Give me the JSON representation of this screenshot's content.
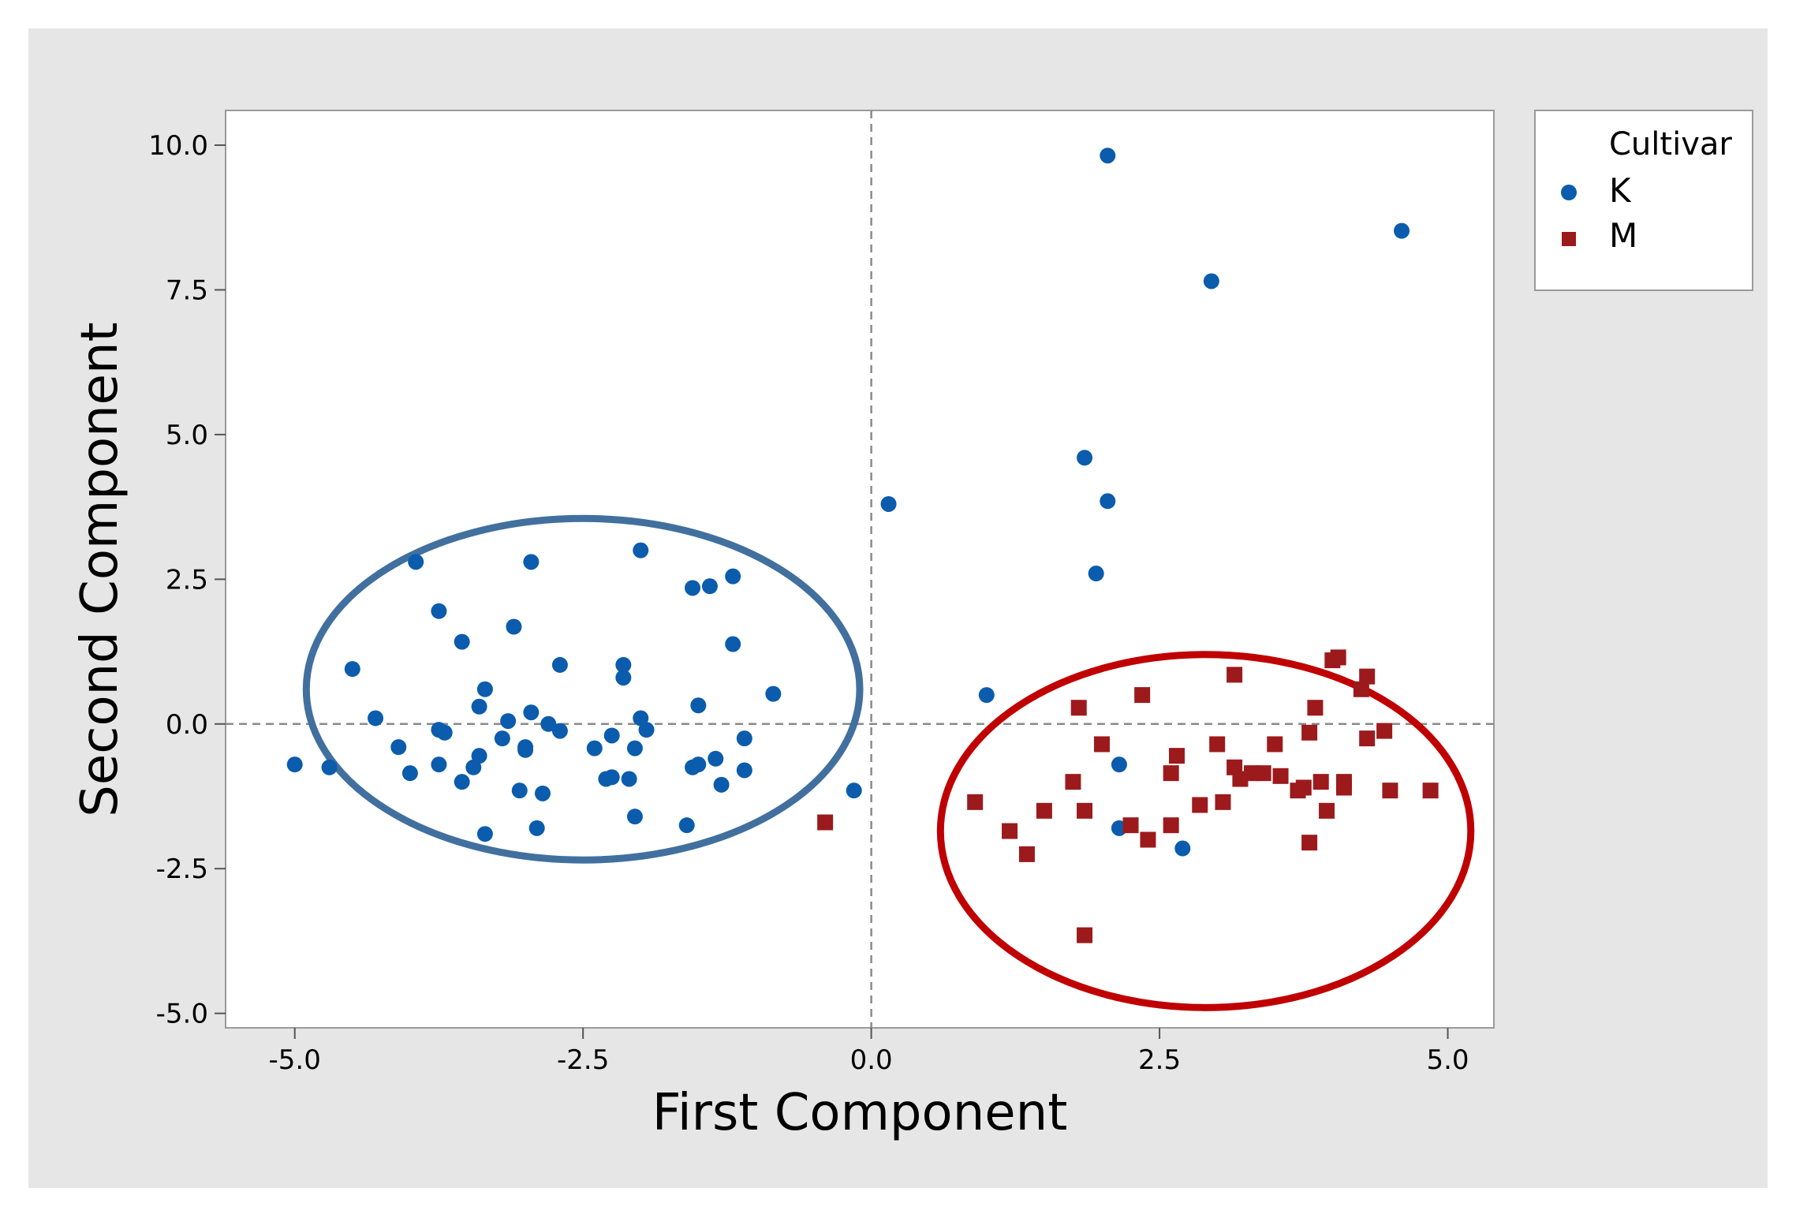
{
  "chart_data": {
    "type": "scatter",
    "xlabel": "First Component",
    "ylabel": "Second Component",
    "xlim": [
      -5.6,
      5.4
    ],
    "ylim": [
      -5.25,
      10.6
    ],
    "x_ticks": [
      "-5.0",
      "-2.5",
      "0.0",
      "2.5",
      "5.0"
    ],
    "y_ticks": [
      "-5.0",
      "-2.5",
      "0.0",
      "2.5",
      "5.0",
      "7.5",
      "10.0"
    ],
    "reference_lines": {
      "x": 0,
      "y": 0,
      "style": "dashed"
    },
    "legend": {
      "title": "Cultivar",
      "position": "right"
    },
    "colors": {
      "K": "#0b5cad",
      "M": "#9c1a1c",
      "ellipse_K": "#41709f",
      "ellipse_M": "#c00000",
      "frame_bg": "#e6e6e6"
    },
    "ellipses": [
      {
        "group": "K",
        "center": [
          -2.5,
          0.6
        ],
        "radii": [
          2.4,
          2.95
        ]
      },
      {
        "group": "M",
        "center": [
          2.9,
          -1.85
        ],
        "radii": [
          2.3,
          3.05
        ]
      }
    ],
    "series": [
      {
        "name": "K",
        "marker": "circle",
        "points": [
          [
            -5.0,
            -0.7
          ],
          [
            -4.7,
            -0.75
          ],
          [
            -4.5,
            0.95
          ],
          [
            -4.3,
            0.1
          ],
          [
            -4.1,
            -0.4
          ],
          [
            -4.0,
            -0.85
          ],
          [
            -3.95,
            2.8
          ],
          [
            -3.75,
            1.95
          ],
          [
            -3.75,
            -0.1
          ],
          [
            -3.7,
            -0.15
          ],
          [
            -3.75,
            -0.7
          ],
          [
            -3.55,
            1.42
          ],
          [
            -3.55,
            -1.0
          ],
          [
            -3.45,
            -0.75
          ],
          [
            -3.4,
            -0.55
          ],
          [
            -3.4,
            0.3
          ],
          [
            -3.35,
            0.6
          ],
          [
            -3.35,
            -1.9
          ],
          [
            -3.2,
            -0.25
          ],
          [
            -3.15,
            0.05
          ],
          [
            -3.1,
            1.68
          ],
          [
            -3.05,
            -1.15
          ],
          [
            -3.0,
            -0.45
          ],
          [
            -3.0,
            -0.4
          ],
          [
            -2.95,
            2.8
          ],
          [
            -2.95,
            0.2
          ],
          [
            -2.9,
            -1.8
          ],
          [
            -2.85,
            -1.2
          ],
          [
            -2.8,
            0.0
          ],
          [
            -2.7,
            -0.12
          ],
          [
            -2.7,
            1.02
          ],
          [
            -2.4,
            -0.42
          ],
          [
            -2.3,
            -0.95
          ],
          [
            -2.25,
            -0.92
          ],
          [
            -2.25,
            -0.2
          ],
          [
            -2.15,
            0.8
          ],
          [
            -2.15,
            1.02
          ],
          [
            -2.1,
            -0.95
          ],
          [
            -2.05,
            -0.42
          ],
          [
            -2.05,
            -1.6
          ],
          [
            -2.0,
            3.0
          ],
          [
            -2.0,
            0.1
          ],
          [
            -1.95,
            -0.1
          ],
          [
            -1.6,
            -1.75
          ],
          [
            -1.55,
            -0.75
          ],
          [
            -1.55,
            2.35
          ],
          [
            -1.5,
            0.32
          ],
          [
            -1.5,
            -0.7
          ],
          [
            -1.4,
            2.38
          ],
          [
            -1.35,
            -0.6
          ],
          [
            -1.3,
            -1.05
          ],
          [
            -1.2,
            2.55
          ],
          [
            -1.2,
            1.38
          ],
          [
            -1.1,
            -0.25
          ],
          [
            -1.1,
            -0.8
          ],
          [
            -0.85,
            0.52
          ],
          [
            -0.15,
            -1.15
          ],
          [
            0.15,
            3.8
          ],
          [
            1.0,
            0.5
          ],
          [
            1.85,
            4.6
          ],
          [
            1.95,
            2.6
          ],
          [
            2.05,
            3.85
          ],
          [
            2.05,
            9.82
          ],
          [
            2.15,
            -0.7
          ],
          [
            2.15,
            -1.8
          ],
          [
            2.7,
            -2.15
          ],
          [
            2.95,
            7.65
          ],
          [
            4.6,
            8.52
          ]
        ]
      },
      {
        "name": "M",
        "marker": "square",
        "points": [
          [
            -0.4,
            -1.7
          ],
          [
            0.9,
            -1.35
          ],
          [
            1.2,
            -1.85
          ],
          [
            1.35,
            -2.25
          ],
          [
            1.5,
            -1.5
          ],
          [
            1.75,
            -1.0
          ],
          [
            1.8,
            0.28
          ],
          [
            1.85,
            -1.5
          ],
          [
            1.85,
            -3.65
          ],
          [
            2.0,
            -0.35
          ],
          [
            2.25,
            -1.75
          ],
          [
            2.35,
            0.5
          ],
          [
            2.4,
            -2.0
          ],
          [
            2.6,
            -0.85
          ],
          [
            2.6,
            -1.75
          ],
          [
            2.65,
            -0.55
          ],
          [
            2.85,
            -1.4
          ],
          [
            3.0,
            -0.35
          ],
          [
            3.05,
            -1.35
          ],
          [
            3.15,
            0.85
          ],
          [
            3.15,
            -0.75
          ],
          [
            3.2,
            -0.95
          ],
          [
            3.3,
            -0.85
          ],
          [
            3.4,
            -0.85
          ],
          [
            3.5,
            -0.35
          ],
          [
            3.55,
            -0.9
          ],
          [
            3.7,
            -1.15
          ],
          [
            3.75,
            -1.1
          ],
          [
            3.8,
            -0.15
          ],
          [
            3.8,
            -2.05
          ],
          [
            3.85,
            0.28
          ],
          [
            3.9,
            -1.0
          ],
          [
            3.95,
            -1.5
          ],
          [
            4.0,
            1.1
          ],
          [
            4.05,
            1.15
          ],
          [
            4.1,
            -1.0
          ],
          [
            4.1,
            -1.1
          ],
          [
            4.25,
            0.6
          ],
          [
            4.3,
            -0.25
          ],
          [
            4.3,
            0.82
          ],
          [
            4.45,
            -0.12
          ],
          [
            4.5,
            -1.15
          ],
          [
            4.85,
            -1.15
          ]
        ]
      }
    ]
  }
}
